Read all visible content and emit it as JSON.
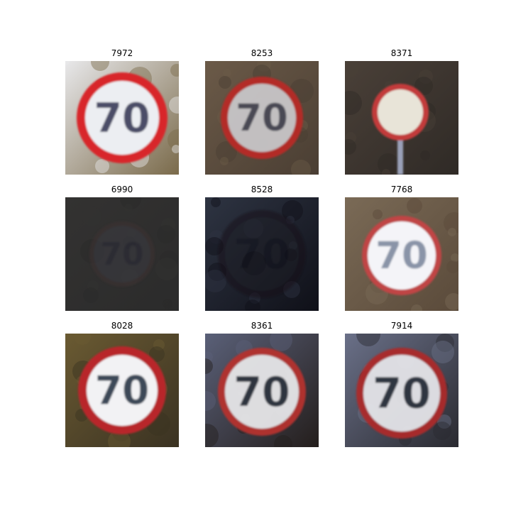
{
  "grid": {
    "tiles": [
      {
        "title": "7972",
        "sign_text": "70",
        "bg": "#7a6a4a",
        "bg2": "#e8e8ea",
        "ring": "#d8262b",
        "face": "#eceef2",
        "digits": "#4b4e68",
        "brightness": 1.0
      },
      {
        "title": "8253",
        "sign_text": "70",
        "bg": "#4a3e33",
        "bg2": "#6b5a48",
        "ring": "#b82a26",
        "face": "#c8c6c8",
        "digits": "#4a4a56",
        "brightness": 0.95
      },
      {
        "title": "8371",
        "sign_text": "",
        "bg": "#2f2a26",
        "bg2": "#4a4038",
        "ring": "#c23a3a",
        "face": "#e8e4d8",
        "digits": "#6a6f8a",
        "brightness": 1.0
      },
      {
        "title": "6990",
        "sign_text": "70",
        "bg": "#2b2b2b",
        "bg2": "#333231",
        "ring": "#3e3232",
        "face": "#3a3a42",
        "digits": "#2a2c38",
        "brightness": 0.55
      },
      {
        "title": "8528",
        "sign_text": "70",
        "bg": "#0f1018",
        "bg2": "#2e3442",
        "ring": "#141014",
        "face": "#1a1a22",
        "digits": "#0c0c12",
        "brightness": 0.45
      },
      {
        "title": "7768",
        "sign_text": "70",
        "bg": "#5a4a3a",
        "bg2": "#7a6a56",
        "ring": "#c04444",
        "face": "#f4f4f8",
        "digits": "#8a94a8",
        "brightness": 1.0
      },
      {
        "title": "8028",
        "sign_text": "70",
        "bg": "#3a3222",
        "bg2": "#6a5a32",
        "ring": "#b8262a",
        "face": "#f2f2f4",
        "digits": "#3c4a58",
        "brightness": 1.0
      },
      {
        "title": "8361",
        "sign_text": "70",
        "bg": "#241e1c",
        "bg2": "#5a6078",
        "ring": "#b5332f",
        "face": "#e6e6e8",
        "digits": "#2f3440",
        "brightness": 0.95
      },
      {
        "title": "7914",
        "sign_text": "70",
        "bg": "#2a2a30",
        "bg2": "#6a7088",
        "ring": "#ac2a2a",
        "face": "#e4e4e8",
        "digits": "#2f3440",
        "brightness": 0.95
      }
    ]
  }
}
